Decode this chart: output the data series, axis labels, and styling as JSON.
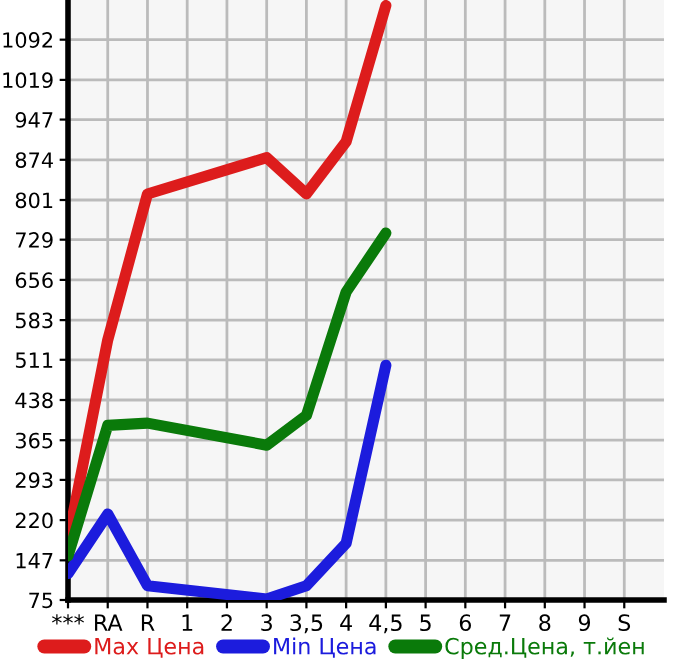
{
  "chart_data": {
    "type": "line",
    "categories": [
      "***",
      "RA",
      "R",
      "1",
      "2",
      "3",
      "3,5",
      "4",
      "4,5",
      "5",
      "6",
      "7",
      "8",
      "9",
      "S"
    ],
    "series": [
      {
        "name": "Max Цена",
        "color": "#dd1c1c",
        "values": [
          184,
          547,
          812,
          null,
          null,
          878,
          812,
          907,
          1154,
          null,
          null,
          null,
          null,
          null,
          null
        ]
      },
      {
        "name": "Min Цена",
        "color": "#1c1cdd",
        "values": [
          123,
          231,
          101,
          null,
          null,
          77,
          101,
          178,
          501,
          null,
          null,
          null,
          null,
          null,
          null
        ]
      },
      {
        "name": "Сред.Цена, т.йен",
        "color": "#0a7a0a",
        "values": [
          155,
          392,
          396,
          null,
          null,
          356,
          410,
          634,
          741,
          null,
          null,
          null,
          null,
          null,
          null
        ]
      }
    ],
    "ylim": [
      75,
      1164
    ],
    "yticks": [
      75,
      147,
      220,
      293,
      365,
      438,
      511,
      583,
      656,
      729,
      801,
      874,
      947,
      1019,
      1092
    ],
    "grid": true,
    "legend": "bottom",
    "marker": "none",
    "line_style": "solid"
  }
}
